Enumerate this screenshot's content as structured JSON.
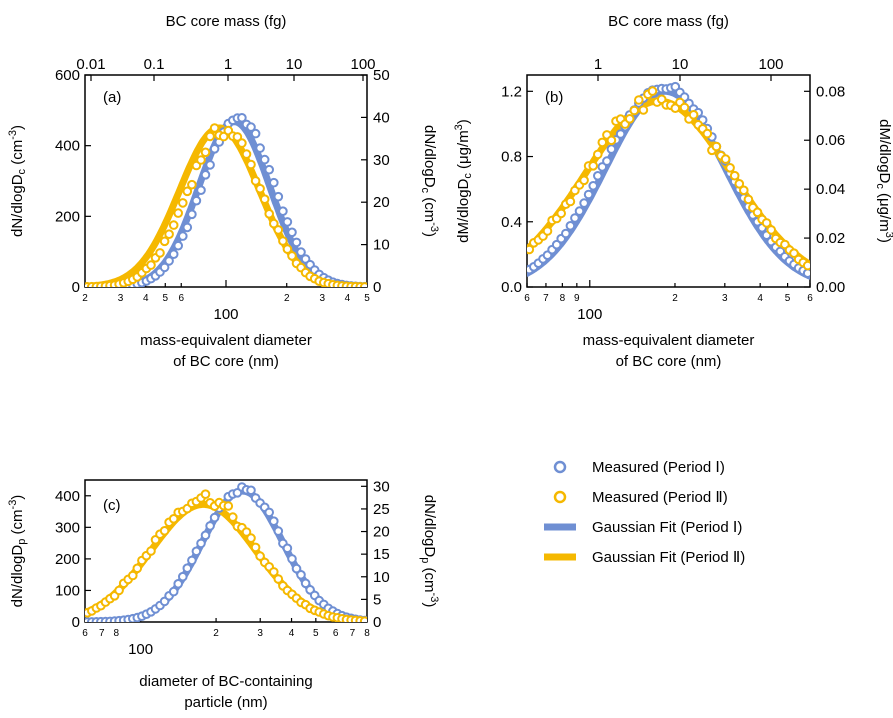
{
  "colors": {
    "period1": "#6f8fd3",
    "period2": "#f5b800"
  },
  "legend": {
    "items": [
      {
        "label": "Measured (Period Ⅰ)",
        "kind": "marker",
        "series": "period1"
      },
      {
        "label": "Measured (Period Ⅱ)",
        "kind": "marker",
        "series": "period2"
      },
      {
        "label": "Gaussian Fit (Period Ⅰ)",
        "kind": "line",
        "series": "period1"
      },
      {
        "label": "Gaussian Fit (Period Ⅱ)",
        "kind": "line",
        "series": "period2"
      }
    ]
  },
  "chart_data": [
    {
      "type": "scatter",
      "panel_label": "(a)",
      "xlabel": [
        "mass-equivalent diameter",
        "of BC core (nm)"
      ],
      "x_scale": "log",
      "xlim": [
        20,
        500
      ],
      "x_major_label": "100",
      "x_minor_labels": [
        [
          "2",
          20
        ],
        [
          "3",
          30
        ],
        [
          "4",
          40
        ],
        [
          "5",
          50
        ],
        [
          "6",
          60
        ],
        [
          "2",
          200
        ],
        [
          "3",
          300
        ],
        [
          "4",
          400
        ],
        [
          "5",
          500
        ]
      ],
      "top_xlabel": "BC core mass (fg)",
      "top_ticks": [
        "0.01",
        "0.1",
        "1",
        "10",
        "100"
      ],
      "ylabel": "dN/dlogD_c (cm^-3)",
      "ylim": [
        0,
        600
      ],
      "yticks": [
        0,
        200,
        400,
        600
      ],
      "y2label": "dN/dlogD_c (cm^-3)",
      "y2lim": [
        0,
        50
      ],
      "y2ticks": [
        0,
        10,
        20,
        30,
        40,
        50
      ],
      "series": [
        {
          "name": "Measured (Period Ⅰ)",
          "kind": "measured",
          "axis": "left",
          "color": "period1",
          "peak": 480,
          "mode": 115,
          "gsd": 1.5,
          "noise": 0.02
        },
        {
          "name": "Measured (Period Ⅱ)",
          "kind": "measured",
          "axis": "right",
          "color": "period2",
          "peak": 37,
          "mode": 98,
          "gsd": 1.53,
          "noise": 0.05
        },
        {
          "name": "Gaussian Fit (Period Ⅰ)",
          "kind": "fit",
          "axis": "left",
          "color": "period1",
          "peak": 468,
          "mode": 110,
          "gsd": 1.5
        },
        {
          "name": "Gaussian Fit (Period Ⅱ)",
          "kind": "fit",
          "axis": "right",
          "color": "period2",
          "peak": 37.5,
          "mode": 93,
          "gsd": 1.58
        }
      ]
    },
    {
      "type": "scatter",
      "panel_label": "(b)",
      "xlabel": [
        "mass-equivalent diameter",
        "of BC core (nm)"
      ],
      "x_scale": "log",
      "xlim": [
        60,
        600
      ],
      "x_major_label": "100",
      "x_minor_labels": [
        [
          "6",
          60
        ],
        [
          "7",
          70
        ],
        [
          "8",
          80
        ],
        [
          "9",
          90
        ],
        [
          "2",
          200
        ],
        [
          "3",
          300
        ],
        [
          "4",
          400
        ],
        [
          "5",
          500
        ],
        [
          "6",
          600
        ]
      ],
      "top_xlabel": "BC core mass (fg)",
      "top_ticks": [
        "1",
        "10",
        "100"
      ],
      "ylabel": "dM/dlogD_c (μg/m^3)",
      "ylim": [
        0,
        1.3
      ],
      "yticks": [
        0.0,
        0.4,
        0.8,
        1.2
      ],
      "y2label": "dM/dlogD_c (μg/m^3)",
      "y2ticks": [
        0.0,
        0.02,
        0.04,
        0.06,
        0.08
      ],
      "series": [
        {
          "name": "Measured (Period Ⅰ)",
          "kind": "measured",
          "axis": "left",
          "color": "period1",
          "peak": 1.23,
          "mode": 185,
          "gsd": 1.65,
          "noise": 0.015
        },
        {
          "name": "Measured (Period Ⅱ)",
          "kind": "measured",
          "axis": "right",
          "color": "period2",
          "peak": 0.077,
          "mode": 175,
          "gsd": 1.8,
          "noise": 0.05
        },
        {
          "name": "Gaussian Fit (Period Ⅰ)",
          "kind": "fit",
          "axis": "left",
          "color": "period1",
          "peak": 1.2,
          "mode": 185,
          "gsd": 1.63
        },
        {
          "name": "Gaussian Fit (Period Ⅱ)",
          "kind": "fit",
          "axis": "right",
          "color": "period2",
          "peak": 0.076,
          "mode": 175,
          "gsd": 1.82
        }
      ]
    },
    {
      "type": "scatter",
      "panel_label": "(c)",
      "xlabel": [
        "diameter of BC-containing",
        "particle (nm)"
      ],
      "x_scale": "log",
      "xlim": [
        60,
        800
      ],
      "x_major_label": "100",
      "x_minor_labels": [
        [
          "6",
          60
        ],
        [
          "7",
          70
        ],
        [
          "8",
          80
        ],
        [
          "2",
          200
        ],
        [
          "3",
          300
        ],
        [
          "4",
          400
        ],
        [
          "5",
          500
        ],
        [
          "6",
          600
        ],
        [
          "7",
          700
        ],
        [
          "8",
          800
        ]
      ],
      "ylabel": "dN/dlogD_p (cm^-3)",
      "ylim": [
        0,
        450
      ],
      "yticks": [
        0,
        100,
        200,
        300,
        400
      ],
      "y2label": "dN/dlogD_p (cm^-3)",
      "y2lim": [
        0,
        30
      ],
      "y2ticks": [
        0,
        5,
        10,
        15,
        20,
        25,
        30
      ],
      "series": [
        {
          "name": "Measured (Period Ⅰ)",
          "kind": "measured",
          "axis": "left",
          "color": "period1",
          "peak": 420,
          "mode": 255,
          "gsd": 1.45,
          "noise": 0.03
        },
        {
          "name": "Measured (Period Ⅱ)",
          "kind": "measured",
          "axis": "right",
          "color": "period2",
          "peak": 27.5,
          "mode": 178,
          "gsd": 1.6,
          "noise": 0.05
        },
        {
          "name": "Gaussian Fit (Period Ⅰ)",
          "kind": "fit",
          "axis": "left",
          "color": "period1",
          "peak": 415,
          "mode": 255,
          "gsd": 1.45
        },
        {
          "name": "Gaussian Fit (Period Ⅱ)",
          "kind": "fit",
          "axis": "right",
          "color": "period2",
          "peak": 26,
          "mode": 178,
          "gsd": 1.62
        }
      ]
    }
  ]
}
